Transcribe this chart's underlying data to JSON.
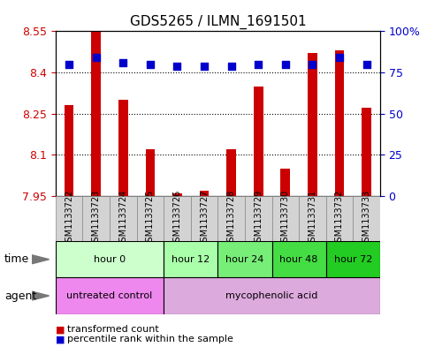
{
  "title": "GDS5265 / ILMN_1691501",
  "samples": [
    "GSM1133722",
    "GSM1133723",
    "GSM1133724",
    "GSM1133725",
    "GSM1133726",
    "GSM1133727",
    "GSM1133728",
    "GSM1133729",
    "GSM1133730",
    "GSM1133731",
    "GSM1133732",
    "GSM1133733"
  ],
  "transformed_counts": [
    8.28,
    8.55,
    8.3,
    8.12,
    7.96,
    7.97,
    8.12,
    8.35,
    8.05,
    8.47,
    8.48,
    8.27
  ],
  "percentile_ranks": [
    80,
    84,
    81,
    80,
    79,
    79,
    79,
    80,
    80,
    80,
    84,
    80
  ],
  "ymin": 7.95,
  "ymax": 8.55,
  "yticks": [
    7.95,
    8.1,
    8.25,
    8.4,
    8.55
  ],
  "ytick_labels": [
    "7.95",
    "8.1",
    "8.25",
    "8.4",
    "8.55"
  ],
  "right_yticks": [
    0,
    25,
    50,
    75,
    100
  ],
  "right_ytick_labels": [
    "0",
    "25",
    "50",
    "75",
    "100%"
  ],
  "bar_color": "#cc0000",
  "dot_color": "#0000cc",
  "bar_baseline": 7.95,
  "time_groups": [
    {
      "label": "hour 0",
      "start": 0,
      "end": 4,
      "color": "#ccffcc"
    },
    {
      "label": "hour 12",
      "start": 4,
      "end": 6,
      "color": "#aaffaa"
    },
    {
      "label": "hour 24",
      "start": 6,
      "end": 8,
      "color": "#77ee77"
    },
    {
      "label": "hour 48",
      "start": 8,
      "end": 10,
      "color": "#44dd44"
    },
    {
      "label": "hour 72",
      "start": 10,
      "end": 12,
      "color": "#22cc22"
    }
  ],
  "agent_groups": [
    {
      "label": "untreated control",
      "start": 0,
      "end": 4,
      "color": "#ee88ee"
    },
    {
      "label": "mycophenolic acid",
      "start": 4,
      "end": 12,
      "color": "#ddaadd"
    }
  ],
  "legend_items": [
    {
      "label": "transformed count",
      "color": "#cc0000"
    },
    {
      "label": "percentile rank within the sample",
      "color": "#0000cc"
    }
  ],
  "bar_width": 0.35,
  "dot_size": 28,
  "grid_color": "#000000",
  "tick_label_color_left": "#cc0000",
  "tick_label_color_right": "#0000cc",
  "title_fontsize": 11,
  "sample_label_fontsize": 7,
  "legend_fontsize": 8,
  "row_label_fontsize": 9
}
